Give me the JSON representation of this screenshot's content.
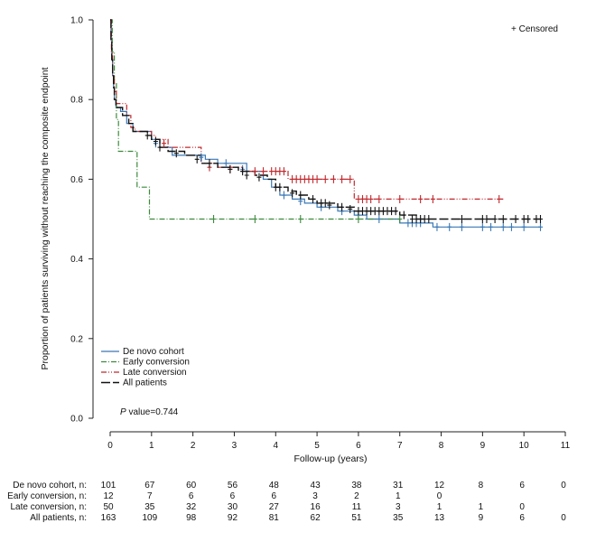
{
  "chart_data": {
    "type": "line",
    "subtype": "kaplan-meier",
    "ylabel": "Proportion of patients surviving without reaching the composite endpoint",
    "xlabel": "Follow-up (years)",
    "xlim": [
      0,
      11
    ],
    "ylim": [
      0,
      1
    ],
    "x_ticks": [
      0,
      1,
      2,
      3,
      4,
      5,
      6,
      7,
      8,
      9,
      10,
      11
    ],
    "y_ticks": [
      "0.0",
      "0.2",
      "0.4",
      "0.6",
      "0.8",
      "1.0"
    ],
    "censor_legend": "+ Censored",
    "pvalue_italic": "P",
    "pvalue_text": " value=0.744",
    "series": [
      {
        "name": "De novo cohort",
        "color": "#3a78b5",
        "dash": "",
        "steps": [
          [
            0,
            1.0
          ],
          [
            0.02,
            0.95
          ],
          [
            0.04,
            0.9
          ],
          [
            0.06,
            0.86
          ],
          [
            0.08,
            0.83
          ],
          [
            0.1,
            0.8
          ],
          [
            0.14,
            0.78
          ],
          [
            0.25,
            0.77
          ],
          [
            0.4,
            0.74
          ],
          [
            0.55,
            0.72
          ],
          [
            1.0,
            0.7
          ],
          [
            1.2,
            0.68
          ],
          [
            1.5,
            0.66
          ],
          [
            2.0,
            0.66
          ],
          [
            2.3,
            0.65
          ],
          [
            2.6,
            0.64
          ],
          [
            3.3,
            0.62
          ],
          [
            3.7,
            0.6
          ],
          [
            3.9,
            0.58
          ],
          [
            4.1,
            0.56
          ],
          [
            4.4,
            0.55
          ],
          [
            4.7,
            0.54
          ],
          [
            5.0,
            0.53
          ],
          [
            5.5,
            0.52
          ],
          [
            5.9,
            0.51
          ],
          [
            6.2,
            0.5
          ],
          [
            7.0,
            0.49
          ],
          [
            7.8,
            0.48
          ],
          [
            10.4,
            0.48
          ]
        ],
        "censors": [
          [
            1.1,
            0.69
          ],
          [
            2.2,
            0.655
          ],
          [
            2.8,
            0.64
          ],
          [
            3.2,
            0.625
          ],
          [
            4.2,
            0.56
          ],
          [
            4.6,
            0.545
          ],
          [
            5.1,
            0.53
          ],
          [
            5.6,
            0.52
          ],
          [
            6.0,
            0.51
          ],
          [
            6.5,
            0.5
          ],
          [
            7.2,
            0.49
          ],
          [
            7.3,
            0.49
          ],
          [
            7.4,
            0.49
          ],
          [
            7.5,
            0.49
          ],
          [
            7.9,
            0.48
          ],
          [
            8.2,
            0.48
          ],
          [
            8.5,
            0.48
          ],
          [
            9.0,
            0.48
          ],
          [
            9.2,
            0.48
          ],
          [
            9.5,
            0.48
          ],
          [
            9.7,
            0.48
          ],
          [
            10.0,
            0.48
          ],
          [
            10.4,
            0.48
          ]
        ]
      },
      {
        "name": "Early conversion",
        "color": "#3c8a3c",
        "dash": "6,2,1,2",
        "steps": [
          [
            0,
            1.0
          ],
          [
            0.05,
            0.92
          ],
          [
            0.1,
            0.84
          ],
          [
            0.15,
            0.75
          ],
          [
            0.2,
            0.67
          ],
          [
            0.65,
            0.58
          ],
          [
            0.95,
            0.5
          ],
          [
            7.0,
            0.5
          ]
        ],
        "censors": [
          [
            2.5,
            0.5
          ],
          [
            3.5,
            0.5
          ],
          [
            4.6,
            0.5
          ],
          [
            6.0,
            0.5
          ],
          [
            7.0,
            0.5
          ]
        ]
      },
      {
        "name": "Late conversion",
        "color": "#c0282d",
        "dash": "6,2,1,2,1,2",
        "steps": [
          [
            0,
            1.0
          ],
          [
            0.03,
            0.92
          ],
          [
            0.06,
            0.86
          ],
          [
            0.1,
            0.82
          ],
          [
            0.15,
            0.79
          ],
          [
            0.4,
            0.76
          ],
          [
            0.5,
            0.73
          ],
          [
            0.6,
            0.72
          ],
          [
            1.0,
            0.71
          ],
          [
            1.1,
            0.7
          ],
          [
            1.4,
            0.68
          ],
          [
            2.2,
            0.64
          ],
          [
            2.6,
            0.63
          ],
          [
            3.2,
            0.62
          ],
          [
            4.3,
            0.6
          ],
          [
            5.9,
            0.55
          ],
          [
            9.5,
            0.55
          ]
        ],
        "censors": [
          [
            1.3,
            0.69
          ],
          [
            2.4,
            0.63
          ],
          [
            2.9,
            0.625
          ],
          [
            3.5,
            0.62
          ],
          [
            3.7,
            0.62
          ],
          [
            3.9,
            0.62
          ],
          [
            4.0,
            0.62
          ],
          [
            4.1,
            0.62
          ],
          [
            4.2,
            0.62
          ],
          [
            4.4,
            0.6
          ],
          [
            4.5,
            0.6
          ],
          [
            4.6,
            0.6
          ],
          [
            4.7,
            0.6
          ],
          [
            4.8,
            0.6
          ],
          [
            4.9,
            0.6
          ],
          [
            5.0,
            0.6
          ],
          [
            5.2,
            0.6
          ],
          [
            5.4,
            0.6
          ],
          [
            5.6,
            0.6
          ],
          [
            5.8,
            0.6
          ],
          [
            6.0,
            0.55
          ],
          [
            6.1,
            0.55
          ],
          [
            6.2,
            0.55
          ],
          [
            6.3,
            0.55
          ],
          [
            6.5,
            0.55
          ],
          [
            7.0,
            0.55
          ],
          [
            7.5,
            0.55
          ],
          [
            7.8,
            0.55
          ],
          [
            9.4,
            0.55
          ]
        ]
      },
      {
        "name": "All patients",
        "color": "#111111",
        "dash": "10,3",
        "steps": [
          [
            0,
            1.0
          ],
          [
            0.02,
            0.95
          ],
          [
            0.04,
            0.9
          ],
          [
            0.06,
            0.86
          ],
          [
            0.08,
            0.83
          ],
          [
            0.1,
            0.8
          ],
          [
            0.14,
            0.78
          ],
          [
            0.3,
            0.76
          ],
          [
            0.45,
            0.74
          ],
          [
            0.55,
            0.72
          ],
          [
            0.9,
            0.71
          ],
          [
            1.0,
            0.7
          ],
          [
            1.2,
            0.68
          ],
          [
            1.4,
            0.67
          ],
          [
            1.8,
            0.66
          ],
          [
            2.2,
            0.64
          ],
          [
            2.6,
            0.63
          ],
          [
            3.1,
            0.62
          ],
          [
            3.5,
            0.61
          ],
          [
            3.8,
            0.6
          ],
          [
            4.0,
            0.58
          ],
          [
            4.3,
            0.57
          ],
          [
            4.5,
            0.56
          ],
          [
            4.8,
            0.55
          ],
          [
            5.0,
            0.54
          ],
          [
            5.5,
            0.53
          ],
          [
            5.9,
            0.52
          ],
          [
            7.0,
            0.51
          ],
          [
            7.4,
            0.5
          ],
          [
            10.4,
            0.5
          ]
        ],
        "censors": [
          [
            0.9,
            0.71
          ],
          [
            1.1,
            0.695
          ],
          [
            1.2,
            0.68
          ],
          [
            1.6,
            0.665
          ],
          [
            2.1,
            0.65
          ],
          [
            2.4,
            0.64
          ],
          [
            2.9,
            0.625
          ],
          [
            3.2,
            0.62
          ],
          [
            3.3,
            0.61
          ],
          [
            3.6,
            0.605
          ],
          [
            4.0,
            0.58
          ],
          [
            4.1,
            0.58
          ],
          [
            4.4,
            0.565
          ],
          [
            4.6,
            0.56
          ],
          [
            4.9,
            0.55
          ],
          [
            5.1,
            0.54
          ],
          [
            5.2,
            0.54
          ],
          [
            5.3,
            0.535
          ],
          [
            5.6,
            0.53
          ],
          [
            5.8,
            0.525
          ],
          [
            6.0,
            0.52
          ],
          [
            6.1,
            0.52
          ],
          [
            6.2,
            0.52
          ],
          [
            6.3,
            0.52
          ],
          [
            6.4,
            0.52
          ],
          [
            6.5,
            0.52
          ],
          [
            6.6,
            0.52
          ],
          [
            6.7,
            0.52
          ],
          [
            6.8,
            0.52
          ],
          [
            6.9,
            0.52
          ],
          [
            7.1,
            0.51
          ],
          [
            7.3,
            0.5
          ],
          [
            7.4,
            0.5
          ],
          [
            7.5,
            0.5
          ],
          [
            7.6,
            0.5
          ],
          [
            7.7,
            0.5
          ],
          [
            8.5,
            0.5
          ],
          [
            9.0,
            0.5
          ],
          [
            9.1,
            0.5
          ],
          [
            9.3,
            0.5
          ],
          [
            9.5,
            0.5
          ],
          [
            9.8,
            0.5
          ],
          [
            10.0,
            0.5
          ],
          [
            10.1,
            0.5
          ],
          [
            10.3,
            0.5
          ],
          [
            10.4,
            0.5
          ]
        ]
      }
    ],
    "risk_table": {
      "columns": [
        0,
        1,
        2,
        3,
        4,
        5,
        6,
        7,
        8,
        9,
        10,
        11
      ],
      "rows": [
        {
          "label": "De novo cohort, n:",
          "values": [
            "101",
            "67",
            "60",
            "56",
            "48",
            "43",
            "38",
            "31",
            "12",
            "8",
            "6",
            "0"
          ]
        },
        {
          "label": "Early conversion, n:",
          "values": [
            "12",
            "7",
            "6",
            "6",
            "6",
            "3",
            "2",
            "1",
            "0",
            "",
            "",
            ""
          ]
        },
        {
          "label": "Late conversion, n:",
          "values": [
            "50",
            "35",
            "32",
            "30",
            "27",
            "16",
            "11",
            "3",
            "1",
            "1",
            "0",
            ""
          ]
        },
        {
          "label": "All patients, n:",
          "values": [
            "163",
            "109",
            "98",
            "92",
            "81",
            "62",
            "51",
            "35",
            "13",
            "9",
            "6",
            "0"
          ]
        }
      ]
    }
  }
}
